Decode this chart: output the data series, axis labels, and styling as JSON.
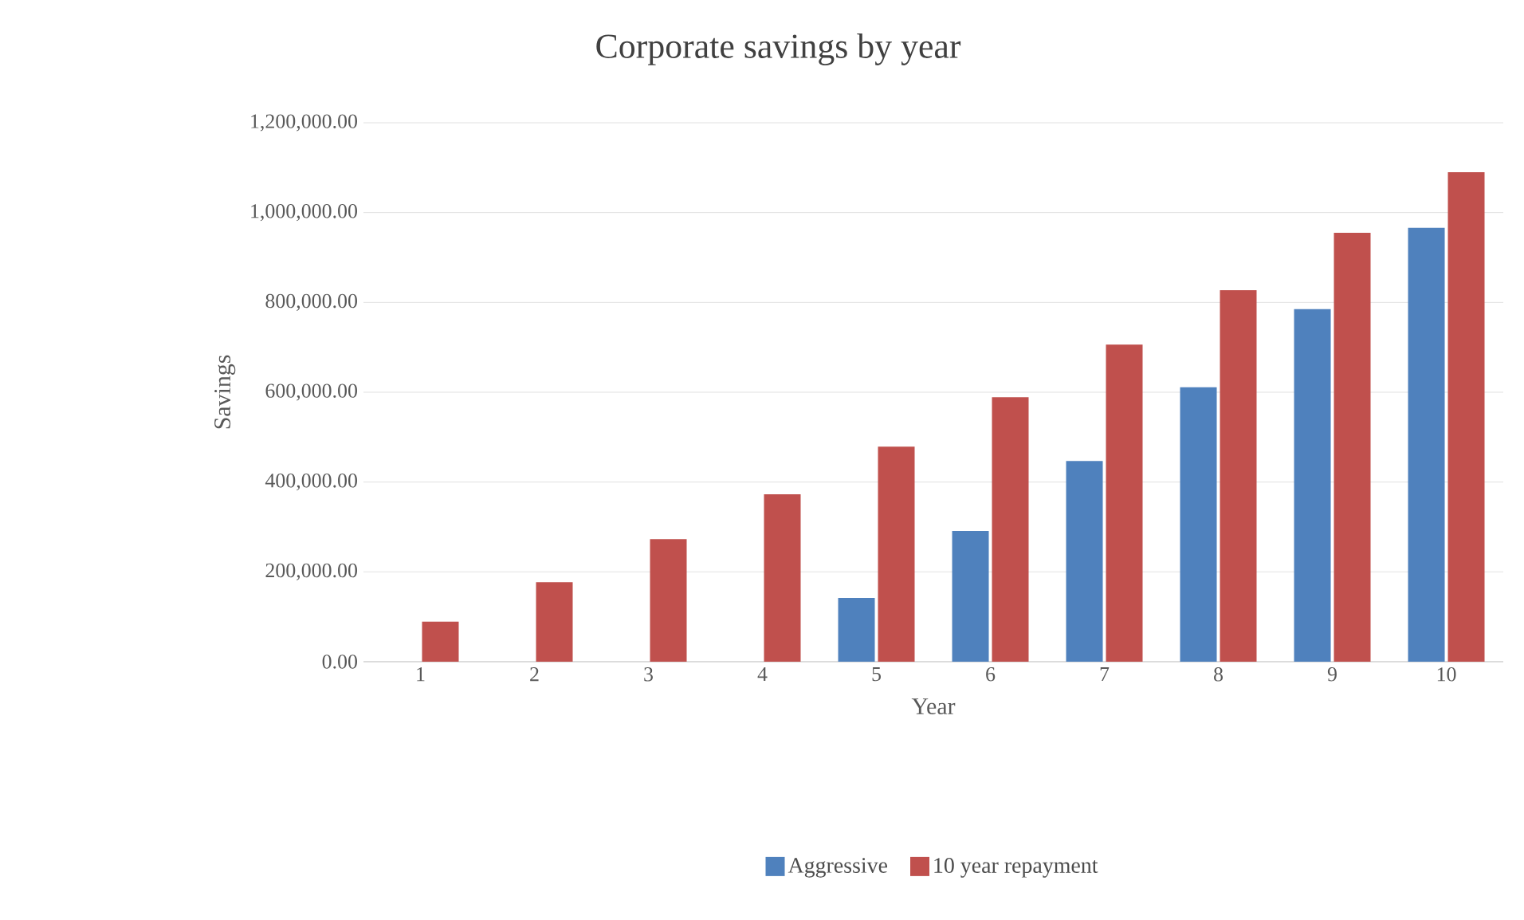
{
  "chart_data": {
    "type": "bar",
    "title": "Corporate savings by year",
    "xlabel": "Year",
    "ylabel": "Savings",
    "categories": [
      "1",
      "2",
      "3",
      "4",
      "5",
      "6",
      "7",
      "8",
      "9",
      "10"
    ],
    "series": [
      {
        "name": "Aggressive",
        "color": "#4f81bd",
        "values": [
          0,
          0,
          0,
          0,
          142000,
          291000,
          447000,
          611000,
          785000,
          966000
        ]
      },
      {
        "name": "10 year repayment",
        "color": "#c0504d",
        "values": [
          89000,
          177000,
          273000,
          373000,
          479000,
          589000,
          706000,
          827000,
          955000,
          1090000
        ]
      }
    ],
    "ylim": [
      0,
      1200000
    ],
    "yticks": [
      {
        "value": 0,
        "label": "0.00"
      },
      {
        "value": 200000,
        "label": "200,000.00"
      },
      {
        "value": 400000,
        "label": "400,000.00"
      },
      {
        "value": 600000,
        "label": "600,000.00"
      },
      {
        "value": 800000,
        "label": "800,000.00"
      },
      {
        "value": 1000000,
        "label": "1,000,000.00"
      },
      {
        "value": 1200000,
        "label": "1,200,000.00"
      }
    ],
    "grid": "y",
    "legend": "bottom"
  }
}
